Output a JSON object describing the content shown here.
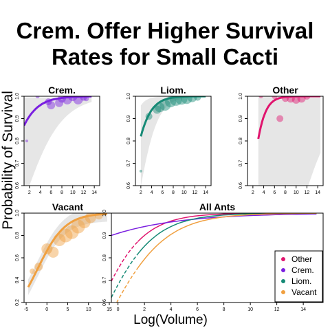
{
  "title_lines": [
    "Crem. Offer Higher Survival",
    "Rates for Small Cacti"
  ],
  "ylabel": "Probability of Survival",
  "xlabel": "Log(Volume)",
  "colors": {
    "crem": "#7a1fe0",
    "liom": "#168a76",
    "other": "#e0156e",
    "vacant": "#f0a040",
    "band": "#e6e6e6"
  },
  "chart_data": [
    {
      "name": "Crem.",
      "type": "scatter",
      "title": "Crem.",
      "color_key": "crem",
      "xlim": [
        1,
        15
      ],
      "ylim": [
        0.6,
        1.0
      ],
      "xticks": [
        2,
        4,
        6,
        8,
        10,
        12,
        14
      ],
      "yticks": [
        0.6,
        0.7,
        0.8,
        0.9,
        1.0
      ],
      "points": [
        {
          "x": 1.5,
          "y": 0.8,
          "r": 2
        },
        {
          "x": 3.5,
          "y": 1.0,
          "r": 3
        },
        {
          "x": 5.5,
          "y": 0.975,
          "r": 5
        },
        {
          "x": 6.0,
          "y": 0.96,
          "r": 6
        },
        {
          "x": 7.5,
          "y": 0.97,
          "r": 6
        },
        {
          "x": 8.0,
          "y": 0.99,
          "r": 6
        },
        {
          "x": 9.0,
          "y": 0.985,
          "r": 7
        },
        {
          "x": 10.0,
          "y": 1.0,
          "r": 7
        },
        {
          "x": 11.0,
          "y": 0.985,
          "r": 7
        },
        {
          "x": 12.0,
          "y": 0.995,
          "r": 5
        },
        {
          "x": 12.5,
          "y": 0.99,
          "r": 4
        }
      ],
      "fit": {
        "k": 0.43,
        "x0": -3.4,
        "xrange": [
          1,
          13.5
        ]
      },
      "band": {
        "lo_k": 0.28,
        "lo_x0": 0.55,
        "hi": 0.995,
        "xrange": [
          1,
          13.5
        ]
      }
    },
    {
      "name": "Liom.",
      "type": "scatter",
      "title": "Liom.",
      "color_key": "liom",
      "xlim": [
        1,
        15
      ],
      "ylim": [
        0.6,
        1.0
      ],
      "xticks": [
        2,
        4,
        6,
        8,
        10,
        12,
        14
      ],
      "yticks": [
        0.6,
        0.7,
        0.8,
        0.9,
        1.0
      ],
      "points": [
        {
          "x": 2.0,
          "y": 0.665,
          "r": 2
        },
        {
          "x": 3.5,
          "y": 0.91,
          "r": 5
        },
        {
          "x": 5.0,
          "y": 0.94,
          "r": 6
        },
        {
          "x": 5.5,
          "y": 0.95,
          "r": 7
        },
        {
          "x": 6.5,
          "y": 0.96,
          "r": 8
        },
        {
          "x": 7.5,
          "y": 0.975,
          "r": 8
        },
        {
          "x": 8.5,
          "y": 0.985,
          "r": 9
        },
        {
          "x": 9.5,
          "y": 0.99,
          "r": 9
        },
        {
          "x": 10.5,
          "y": 0.99,
          "r": 8
        },
        {
          "x": 11.5,
          "y": 0.995,
          "r": 7
        },
        {
          "x": 12.5,
          "y": 0.995,
          "r": 5
        }
      ],
      "fit": {
        "k": 0.6,
        "x0": -0.53,
        "xrange": [
          2,
          14
        ]
      },
      "band": {
        "lo_k": 0.55,
        "lo_x0": 1.3,
        "hi": 0.999,
        "hi_k": 0.9,
        "hi_x0": -1.5,
        "xrange": [
          2,
          14
        ]
      }
    },
    {
      "name": "Other",
      "type": "scatter",
      "title": "Other",
      "color_key": "other",
      "xlim": [
        1,
        15
      ],
      "ylim": [
        0.6,
        1.0
      ],
      "xticks": [
        2,
        4,
        6,
        8,
        10,
        12,
        14
      ],
      "yticks": [
        0.6,
        0.7,
        0.8,
        0.9,
        1.0
      ],
      "points": [
        {
          "x": 3.5,
          "y": 1.0,
          "r": 3
        },
        {
          "x": 6.0,
          "y": 1.0,
          "r": 4
        },
        {
          "x": 7.0,
          "y": 0.9,
          "r": 5
        },
        {
          "x": 8.0,
          "y": 0.99,
          "r": 5
        },
        {
          "x": 9.0,
          "y": 0.99,
          "r": 6
        },
        {
          "x": 10.0,
          "y": 0.985,
          "r": 6
        },
        {
          "x": 11.0,
          "y": 0.99,
          "r": 6
        },
        {
          "x": 12.0,
          "y": 1.0,
          "r": 5
        }
      ],
      "fit": {
        "k": 0.85,
        "x0": 1.3,
        "xrange": [
          3,
          14.5
        ]
      },
      "band": {
        "lo_k": 0.3,
        "lo_x0": 10.9,
        "hi": 1.0,
        "xrange": [
          3,
          14.5
        ]
      }
    },
    {
      "name": "Vacant",
      "type": "scatter",
      "title": "Vacant",
      "color_key": "vacant",
      "xlim": [
        -5.5,
        15.5
      ],
      "ylim": [
        0.2,
        1.0
      ],
      "xticks": [
        -5,
        0,
        5,
        10,
        15
      ],
      "yticks": [
        0.2,
        0.4,
        0.6,
        0.8,
        1.0
      ],
      "points": [
        {
          "x": -3.5,
          "y": 0.48,
          "r": 4
        },
        {
          "x": -2.0,
          "y": 0.52,
          "r": 6
        },
        {
          "x": 0.0,
          "y": 0.68,
          "r": 8
        },
        {
          "x": 1.5,
          "y": 0.65,
          "r": 8
        },
        {
          "x": 3.0,
          "y": 0.76,
          "r": 9
        },
        {
          "x": 4.5,
          "y": 0.8,
          "r": 10
        },
        {
          "x": 6.0,
          "y": 0.83,
          "r": 10
        },
        {
          "x": 7.5,
          "y": 0.88,
          "r": 10
        },
        {
          "x": 9.0,
          "y": 0.92,
          "r": 9
        },
        {
          "x": 10.5,
          "y": 0.96,
          "r": 8
        },
        {
          "x": 12.5,
          "y": 0.98,
          "r": 6
        }
      ],
      "fit": {
        "k": 0.3,
        "x0": -2.25,
        "xrange": [
          -4.5,
          14.5
        ]
      },
      "band": {
        "spread": 0.07,
        "xrange": [
          -4.5,
          14.5
        ]
      }
    },
    {
      "name": "All Ants",
      "type": "line",
      "title": "All Ants",
      "xlim": [
        -0.5,
        15.5
      ],
      "ylim": [
        0.6,
        1.0
      ],
      "xticks": [
        0,
        2,
        4,
        6,
        8,
        10,
        12,
        14
      ],
      "yticks": [
        0.6,
        0.7,
        0.8,
        0.9,
        1.0
      ],
      "legend_position": "bottom-right",
      "series": [
        {
          "name": "Other",
          "color_key": "other",
          "k": 0.55,
          "x0": -2.0,
          "xrange": [
            -0.5,
            15
          ],
          "dashed_until": 1.5
        },
        {
          "name": "Crem.",
          "color_key": "crem",
          "k": 0.22,
          "x0": -10.5,
          "xrange": [
            -0.5,
            15
          ]
        },
        {
          "name": "Liom.",
          "color_key": "liom",
          "k": 0.5,
          "x0": -1.5,
          "xrange": [
            -0.5,
            15
          ],
          "dashed_until": 1.5
        },
        {
          "name": "Vacant",
          "color_key": "vacant",
          "k": 0.45,
          "x0": -1.0,
          "xrange": [
            -0.5,
            15
          ],
          "dashed_until": 1.5
        }
      ]
    }
  ]
}
